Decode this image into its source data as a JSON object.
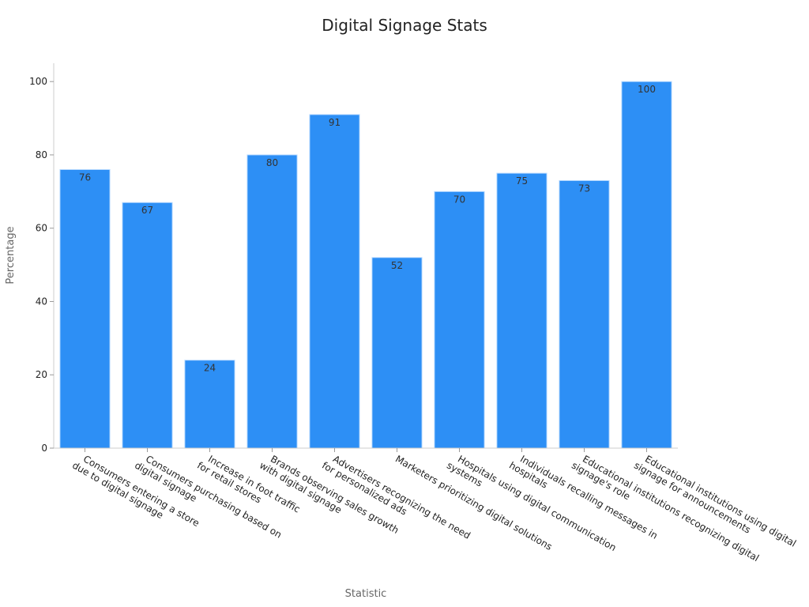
{
  "chart_data": {
    "type": "bar",
    "title": "Digital Signage Stats",
    "xlabel": "Statistic",
    "ylabel": "Percentage",
    "ylim": [
      0,
      105
    ],
    "yticks": [
      0,
      20,
      40,
      60,
      80,
      100
    ],
    "grid": false,
    "bar_color": "#2d8ff5",
    "bar_edge_color": "#bcdcff",
    "categories": [
      [
        "Consumers entering a store",
        "due to digital signage"
      ],
      [
        "Consumers purchasing based on",
        "digital signage"
      ],
      [
        "Increase in foot traffic",
        "for retail stores"
      ],
      [
        "Brands observing sales growth",
        "with digital signage"
      ],
      [
        "Advertisers recognizing the need",
        "for personalized ads"
      ],
      [
        "Marketers prioritizing digital solutions"
      ],
      [
        "Hospitals using digital communication",
        "systems"
      ],
      [
        "Individuals recalling messages in",
        "hospitals"
      ],
      [
        "Educational institutions recognizing digital",
        "signage's role"
      ],
      [
        "Educational institutions using digital",
        "signage for announcements"
      ]
    ],
    "values": [
      76,
      67,
      24,
      80,
      91,
      52,
      70,
      75,
      73,
      100
    ]
  }
}
